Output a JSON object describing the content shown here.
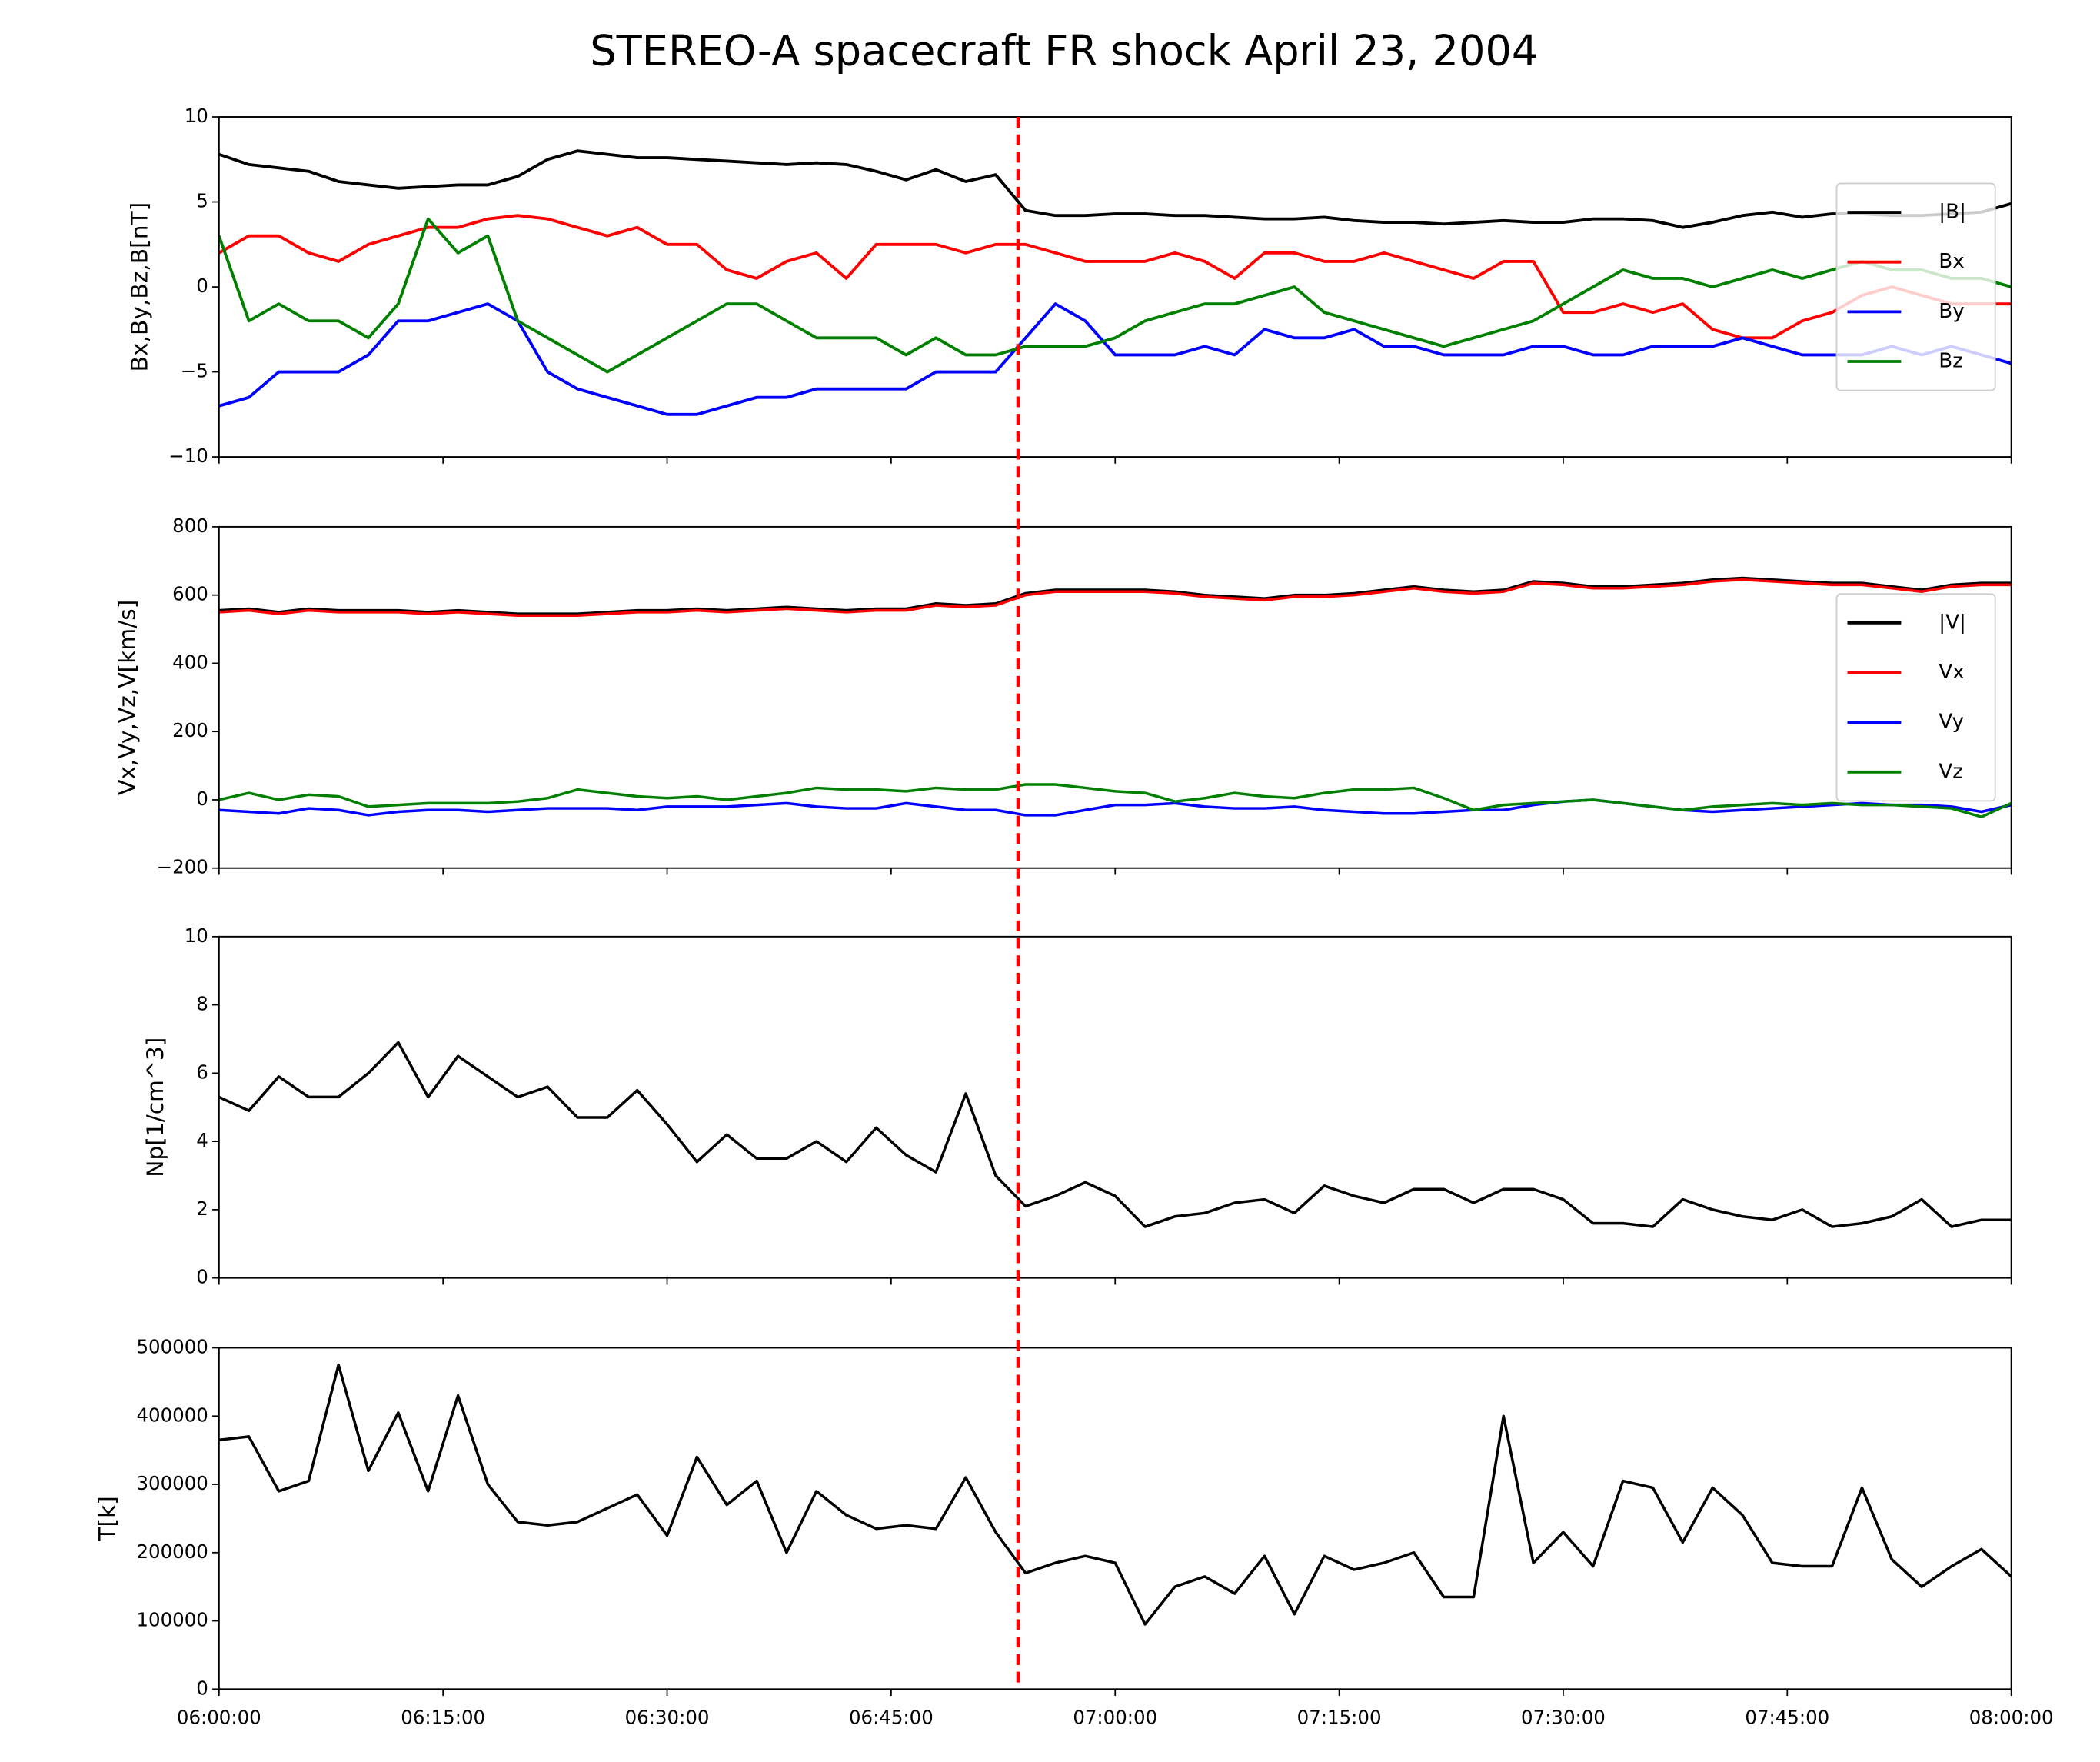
{
  "title": "STEREO-A spacecraft FR shock April 23, 2004",
  "vline": {
    "x": "06:53:30",
    "color": "#ff0000"
  },
  "chart_data": [
    {
      "type": "line",
      "ylabel": "Bx,By,Bz,B[nT]",
      "ylim": [
        -10,
        10
      ],
      "yticks": [
        {
          "value": -10,
          "label": "−10"
        },
        {
          "value": -5,
          "label": "−5"
        },
        0,
        5,
        10
      ],
      "legend": "center right",
      "x": [
        "06:00:00",
        "06:02:00",
        "06:04:00",
        "06:06:00",
        "06:08:00",
        "06:10:00",
        "06:12:00",
        "06:14:00",
        "06:16:00",
        "06:18:00",
        "06:20:00",
        "06:22:00",
        "06:24:00",
        "06:26:00",
        "06:28:00",
        "06:30:00",
        "06:32:00",
        "06:34:00",
        "06:36:00",
        "06:38:00",
        "06:40:00",
        "06:42:00",
        "06:44:00",
        "06:46:00",
        "06:48:00",
        "06:50:00",
        "06:52:00",
        "06:54:00",
        "06:56:00",
        "06:58:00",
        "07:00:00",
        "07:02:00",
        "07:04:00",
        "07:06:00",
        "07:08:00",
        "07:10:00",
        "07:12:00",
        "07:14:00",
        "07:16:00",
        "07:18:00",
        "07:20:00",
        "07:22:00",
        "07:24:00",
        "07:26:00",
        "07:28:00",
        "07:30:00",
        "07:32:00",
        "07:34:00",
        "07:36:00",
        "07:38:00",
        "07:40:00",
        "07:42:00",
        "07:44:00",
        "07:46:00",
        "07:48:00",
        "07:50:00",
        "07:52:00",
        "07:54:00",
        "07:56:00",
        "07:58:00",
        "08:00:00"
      ],
      "series": [
        {
          "name": "|B|",
          "color": "#000000",
          "values": [
            7.8,
            7.2,
            7,
            6.8,
            6.2,
            6,
            5.8,
            5.9,
            6,
            6,
            6.5,
            7.5,
            8,
            7.8,
            7.6,
            7.6,
            7.5,
            7.4,
            7.3,
            7.2,
            7.3,
            7.2,
            6.8,
            6.3,
            6.9,
            6.2,
            6.6,
            4.5,
            4.2,
            4.2,
            4.3,
            4.3,
            4.2,
            4.2,
            4.1,
            4,
            4,
            4.1,
            3.9,
            3.8,
            3.8,
            3.7,
            3.8,
            3.9,
            3.8,
            3.8,
            4,
            4,
            3.9,
            3.5,
            3.8,
            4.2,
            4.4,
            4.1,
            4.3,
            4.3,
            4.2,
            4.2,
            4.3,
            4.4,
            4.9
          ]
        },
        {
          "name": "Bx",
          "color": "#ff0000",
          "values": [
            2,
            3,
            3,
            2,
            1.5,
            2.5,
            3,
            3.5,
            3.5,
            4,
            4.2,
            4,
            3.5,
            3,
            3.5,
            2.5,
            2.5,
            1,
            0.5,
            1.5,
            2,
            0.5,
            2.5,
            2.5,
            2.5,
            2,
            2.5,
            2.5,
            2,
            1.5,
            1.5,
            1.5,
            2,
            1.5,
            0.5,
            2,
            2,
            1.5,
            1.5,
            2,
            1.5,
            1,
            0.5,
            1.5,
            1.5,
            -1.5,
            -1.5,
            -1,
            -1.5,
            -1,
            -2.5,
            -3,
            -3,
            -2,
            -1.5,
            -0.5,
            0,
            -0.5,
            -1,
            -1,
            -1
          ]
        },
        {
          "name": "By",
          "color": "#0000ff",
          "values": [
            -7,
            -6.5,
            -5,
            -5,
            -5,
            -4,
            -2,
            -2,
            -1.5,
            -1,
            -2,
            -5,
            -6,
            -6.5,
            -7,
            -7.5,
            -7.5,
            -7,
            -6.5,
            -6.5,
            -6,
            -6,
            -6,
            -6,
            -5,
            -5,
            -5,
            -3,
            -1,
            -2,
            -4,
            -4,
            -4,
            -3.5,
            -4,
            -2.5,
            -3,
            -3,
            -2.5,
            -3.5,
            -3.5,
            -4,
            -4,
            -4,
            -3.5,
            -3.5,
            -4,
            -4,
            -3.5,
            -3.5,
            -3.5,
            -3,
            -3.5,
            -4,
            -4,
            -4,
            -3.5,
            -4,
            -3.5,
            -4,
            -4.5
          ]
        },
        {
          "name": "Bz",
          "color": "#008000",
          "values": [
            3,
            -2,
            -1,
            -2,
            -2,
            -3,
            -1,
            4,
            2,
            3,
            -2,
            -3,
            -4,
            -5,
            -4,
            -3,
            -2,
            -1,
            -1,
            -2,
            -3,
            -3,
            -3,
            -4,
            -3,
            -4,
            -4,
            -3.5,
            -3.5,
            -3.5,
            -3,
            -2,
            -1.5,
            -1,
            -1,
            -0.5,
            0,
            -1.5,
            -2,
            -2.5,
            -3,
            -3.5,
            -3,
            -2.5,
            -2,
            -1,
            0,
            1,
            0.5,
            0.5,
            0,
            0.5,
            1,
            0.5,
            1,
            1.5,
            1,
            1,
            0.5,
            0.5,
            0
          ]
        }
      ]
    },
    {
      "type": "line",
      "ylabel": "Vx,Vy,Vz,V[km/s]",
      "ylim": [
        -200,
        800
      ],
      "yticks": [
        {
          "value": -200,
          "label": "−200"
        },
        0,
        200,
        400,
        600,
        800
      ],
      "legend": "center right",
      "x": [
        "06:00:00",
        "06:02:00",
        "06:04:00",
        "06:06:00",
        "06:08:00",
        "06:10:00",
        "06:12:00",
        "06:14:00",
        "06:16:00",
        "06:18:00",
        "06:20:00",
        "06:22:00",
        "06:24:00",
        "06:26:00",
        "06:28:00",
        "06:30:00",
        "06:32:00",
        "06:34:00",
        "06:36:00",
        "06:38:00",
        "06:40:00",
        "06:42:00",
        "06:44:00",
        "06:46:00",
        "06:48:00",
        "06:50:00",
        "06:52:00",
        "06:54:00",
        "06:56:00",
        "06:58:00",
        "07:00:00",
        "07:02:00",
        "07:04:00",
        "07:06:00",
        "07:08:00",
        "07:10:00",
        "07:12:00",
        "07:14:00",
        "07:16:00",
        "07:18:00",
        "07:20:00",
        "07:22:00",
        "07:24:00",
        "07:26:00",
        "07:28:00",
        "07:30:00",
        "07:32:00",
        "07:34:00",
        "07:36:00",
        "07:38:00",
        "07:40:00",
        "07:42:00",
        "07:44:00",
        "07:46:00",
        "07:48:00",
        "07:50:00",
        "07:52:00",
        "07:54:00",
        "07:56:00",
        "07:58:00",
        "08:00:00"
      ],
      "series": [
        {
          "name": "|V|",
          "color": "#000000",
          "values": [
            555,
            560,
            550,
            560,
            555,
            555,
            555,
            550,
            555,
            550,
            545,
            545,
            545,
            550,
            555,
            555,
            560,
            555,
            560,
            565,
            560,
            555,
            560,
            560,
            575,
            570,
            575,
            605,
            615,
            615,
            615,
            615,
            610,
            600,
            595,
            590,
            600,
            600,
            605,
            615,
            625,
            615,
            610,
            615,
            640,
            635,
            625,
            625,
            630,
            635,
            645,
            650,
            645,
            640,
            635,
            635,
            625,
            615,
            630,
            635,
            635
          ]
        },
        {
          "name": "Vx",
          "color": "#ff0000",
          "values": [
            550,
            555,
            545,
            555,
            550,
            550,
            550,
            545,
            550,
            545,
            540,
            540,
            540,
            545,
            550,
            550,
            555,
            550,
            555,
            560,
            555,
            550,
            555,
            555,
            570,
            565,
            570,
            600,
            610,
            610,
            610,
            610,
            605,
            595,
            590,
            585,
            595,
            595,
            600,
            610,
            620,
            610,
            605,
            610,
            635,
            630,
            620,
            620,
            625,
            630,
            640,
            645,
            640,
            635,
            630,
            630,
            620,
            610,
            625,
            630,
            630
          ]
        },
        {
          "name": "Vy",
          "color": "#0000ff",
          "values": [
            -30,
            -35,
            -40,
            -25,
            -30,
            -45,
            -35,
            -30,
            -30,
            -35,
            -30,
            -25,
            -25,
            -25,
            -30,
            -20,
            -20,
            -20,
            -15,
            -10,
            -20,
            -25,
            -25,
            -10,
            -20,
            -30,
            -30,
            -45,
            -45,
            -30,
            -15,
            -15,
            -10,
            -20,
            -25,
            -25,
            -20,
            -30,
            -35,
            -40,
            -40,
            -35,
            -30,
            -30,
            -15,
            -5,
            0,
            -10,
            -20,
            -30,
            -35,
            -30,
            -25,
            -20,
            -15,
            -10,
            -15,
            -15,
            -20,
            -35,
            -15
          ]
        },
        {
          "name": "Vz",
          "color": "#008000",
          "values": [
            0,
            20,
            0,
            15,
            10,
            -20,
            -15,
            -10,
            -10,
            -10,
            -5,
            5,
            30,
            20,
            10,
            5,
            10,
            0,
            10,
            20,
            35,
            30,
            30,
            25,
            35,
            30,
            30,
            45,
            45,
            35,
            25,
            20,
            -5,
            5,
            20,
            10,
            5,
            20,
            30,
            30,
            35,
            5,
            -30,
            -15,
            -10,
            -5,
            0,
            -10,
            -20,
            -30,
            -20,
            -15,
            -10,
            -15,
            -10,
            -15,
            -15,
            -20,
            -25,
            -50,
            -10
          ]
        }
      ]
    },
    {
      "type": "line",
      "ylabel": "Np[1/cm^3]",
      "ylim": [
        0,
        10
      ],
      "yticks": [
        0,
        2,
        4,
        6,
        8,
        10
      ],
      "x": [
        "06:00:00",
        "06:02:00",
        "06:04:00",
        "06:06:00",
        "06:08:00",
        "06:10:00",
        "06:12:00",
        "06:14:00",
        "06:16:00",
        "06:18:00",
        "06:20:00",
        "06:22:00",
        "06:24:00",
        "06:26:00",
        "06:28:00",
        "06:30:00",
        "06:32:00",
        "06:34:00",
        "06:36:00",
        "06:38:00",
        "06:40:00",
        "06:42:00",
        "06:44:00",
        "06:46:00",
        "06:48:00",
        "06:50:00",
        "06:52:00",
        "06:54:00",
        "06:56:00",
        "06:58:00",
        "07:00:00",
        "07:02:00",
        "07:04:00",
        "07:06:00",
        "07:08:00",
        "07:10:00",
        "07:12:00",
        "07:14:00",
        "07:16:00",
        "07:18:00",
        "07:20:00",
        "07:22:00",
        "07:24:00",
        "07:26:00",
        "07:28:00",
        "07:30:00",
        "07:32:00",
        "07:34:00",
        "07:36:00",
        "07:38:00",
        "07:40:00",
        "07:42:00",
        "07:44:00",
        "07:46:00",
        "07:48:00",
        "07:50:00",
        "07:52:00",
        "07:54:00",
        "07:56:00",
        "07:58:00",
        "08:00:00"
      ],
      "series": [
        {
          "color": "#000000",
          "values": [
            5.3,
            4.9,
            5.9,
            5.3,
            5.3,
            6,
            6.9,
            5.3,
            6.5,
            5.9,
            5.3,
            5.6,
            4.7,
            4.7,
            5.5,
            4.5,
            3.4,
            4.2,
            3.5,
            3.5,
            4,
            3.4,
            4.4,
            3.6,
            3.1,
            5.4,
            3,
            2.1,
            2.4,
            2.8,
            2.4,
            1.5,
            1.8,
            1.9,
            2.2,
            2.3,
            1.9,
            2.7,
            2.4,
            2.2,
            2.6,
            2.6,
            2.2,
            2.6,
            2.6,
            2.3,
            1.6,
            1.6,
            1.5,
            2.3,
            2,
            1.8,
            1.7,
            2,
            1.5,
            1.6,
            1.8,
            2.3,
            1.5,
            1.7,
            1.7
          ]
        }
      ]
    },
    {
      "type": "line",
      "ylabel": "T[k]",
      "ylim": [
        0,
        500000
      ],
      "yticks": [
        0,
        100000,
        200000,
        300000,
        400000,
        500000
      ],
      "xlim": [
        "06:00:00",
        "08:00:00"
      ],
      "xticks": [
        "06:00:00",
        "06:15:00",
        "06:30:00",
        "06:45:00",
        "07:00:00",
        "07:15:00",
        "07:30:00",
        "07:45:00",
        "08:00:00"
      ],
      "x": [
        "06:00:00",
        "06:02:00",
        "06:04:00",
        "06:06:00",
        "06:08:00",
        "06:10:00",
        "06:12:00",
        "06:14:00",
        "06:16:00",
        "06:18:00",
        "06:20:00",
        "06:22:00",
        "06:24:00",
        "06:26:00",
        "06:28:00",
        "06:30:00",
        "06:32:00",
        "06:34:00",
        "06:36:00",
        "06:38:00",
        "06:40:00",
        "06:42:00",
        "06:44:00",
        "06:46:00",
        "06:48:00",
        "06:50:00",
        "06:52:00",
        "06:54:00",
        "06:56:00",
        "06:58:00",
        "07:00:00",
        "07:02:00",
        "07:04:00",
        "07:06:00",
        "07:08:00",
        "07:10:00",
        "07:12:00",
        "07:14:00",
        "07:16:00",
        "07:18:00",
        "07:20:00",
        "07:22:00",
        "07:24:00",
        "07:26:00",
        "07:28:00",
        "07:30:00",
        "07:32:00",
        "07:34:00",
        "07:36:00",
        "07:38:00",
        "07:40:00",
        "07:42:00",
        "07:44:00",
        "07:46:00",
        "07:48:00",
        "07:50:00",
        "07:52:00",
        "07:54:00",
        "07:56:00",
        "07:58:00",
        "08:00:00"
      ],
      "series": [
        {
          "color": "#000000",
          "values": [
            365000,
            370000,
            290000,
            305000,
            475000,
            320000,
            405000,
            290000,
            430000,
            300000,
            245000,
            240000,
            245000,
            265000,
            285000,
            225000,
            340000,
            270000,
            305000,
            200000,
            290000,
            255000,
            235000,
            240000,
            235000,
            310000,
            230000,
            170000,
            185000,
            195000,
            185000,
            95000,
            150000,
            165000,
            140000,
            195000,
            110000,
            195000,
            175000,
            185000,
            200000,
            135000,
            135000,
            400000,
            185000,
            230000,
            180000,
            305000,
            295000,
            215000,
            295000,
            255000,
            185000,
            180000,
            180000,
            295000,
            190000,
            150000,
            180000,
            205000,
            165000
          ]
        }
      ]
    }
  ]
}
